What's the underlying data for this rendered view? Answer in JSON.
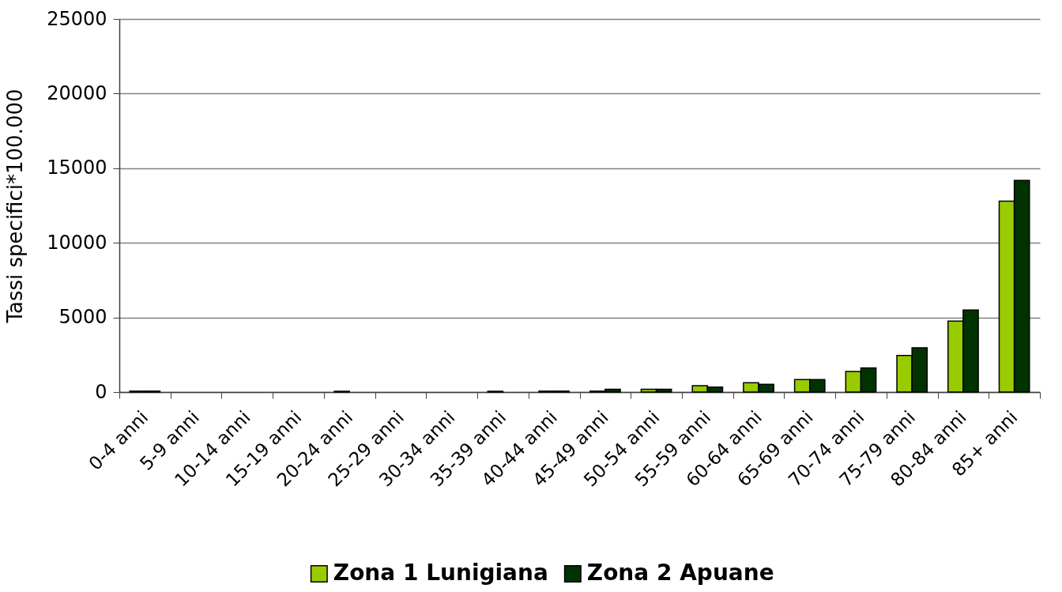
{
  "chart_data": {
    "type": "bar",
    "ylabel": "Tassi specifici*100.000",
    "categories": [
      "0-4 anni",
      "5-9 anni",
      "10-14 anni",
      "15-19 anni",
      "20-24 anni",
      "25-29 anni",
      "30-34 anni",
      "35-39 anni",
      "40-44 anni",
      "45-49 anni",
      "50-54 anni",
      "55-59 anni",
      "60-64 anni",
      "65-69 anni",
      "70-74 anni",
      "75-79 anni",
      "80-84 anni",
      "85+ anni"
    ],
    "series": [
      {
        "name": "Zona 1 Lunigiana",
        "color": "#99cc00",
        "values": [
          60,
          0,
          0,
          0,
          50,
          0,
          0,
          50,
          60,
          60,
          190,
          430,
          620,
          830,
          1380,
          2450,
          4760,
          12790
        ]
      },
      {
        "name": "Zona 2 Apuane",
        "color": "#003300",
        "values": [
          60,
          0,
          0,
          0,
          0,
          0,
          0,
          0,
          60,
          180,
          180,
          330,
          520,
          830,
          1610,
          2970,
          5500,
          14180
        ]
      }
    ],
    "ylim": [
      0,
      25000
    ],
    "yticks": [
      0,
      5000,
      10000,
      15000,
      20000,
      25000
    ],
    "grid": "y",
    "legend": "bottom"
  }
}
